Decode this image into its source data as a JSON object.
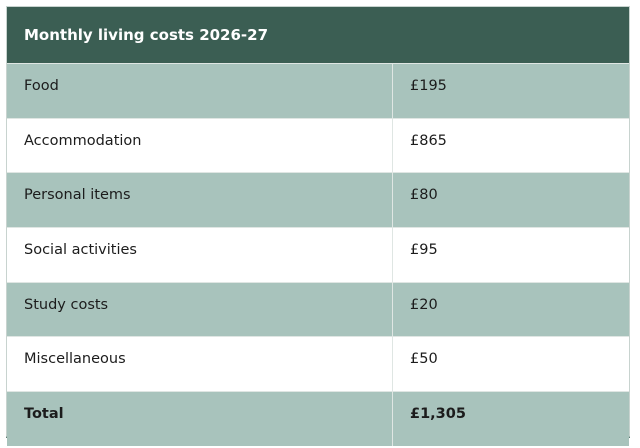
{
  "table": {
    "title": "Monthly living costs 2026-27",
    "rows": [
      {
        "label": "Food",
        "value": "£195"
      },
      {
        "label": "Accommodation",
        "value": "£865"
      },
      {
        "label": "Personal items",
        "value": "£80"
      },
      {
        "label": "Social activities",
        "value": "£95"
      },
      {
        "label": "Study costs",
        "value": "£20"
      },
      {
        "label": "Miscellaneous",
        "value": "£50"
      }
    ],
    "total": {
      "label": "Total",
      "value": "£1,305"
    }
  },
  "colors": {
    "header_bg": "#3b5e53",
    "shaded_row_bg": "#a8c3bc",
    "plain_row_bg": "#ffffff"
  }
}
